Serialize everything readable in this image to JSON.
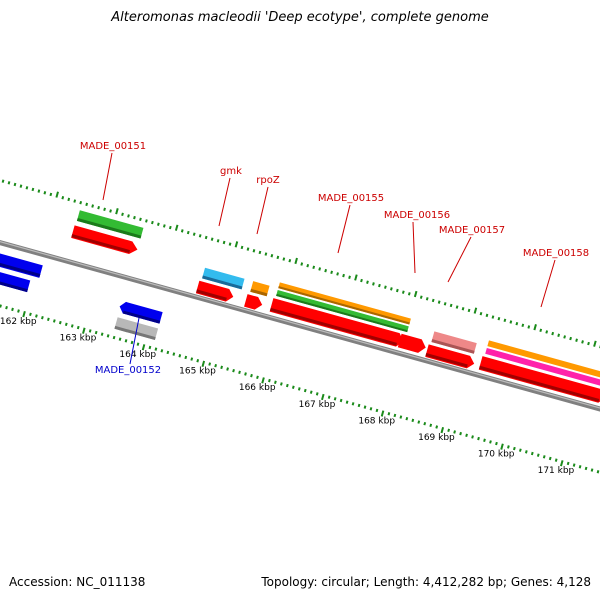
{
  "title": "Alteromonas macleodii 'Deep ecotype', complete genome",
  "footer": {
    "accession": "Accession: NC_011138",
    "summary": "Topology: circular; Length: 4,412,282 bp; Genes: 4,128"
  },
  "colors": {
    "backbone": "#808080",
    "tick": "#1a8a1a",
    "label_forward": "#cc0000",
    "label_reverse": "#0000cc",
    "cds": "#ff0000",
    "green": "#33bb33",
    "cyan": "#33bbee",
    "orange": "#ff9900",
    "pink": "#ee8888",
    "magenta": "#ff22aa",
    "blue": "#0000ee",
    "grey": "#b8b8b8"
  },
  "axis": {
    "kbp_ticks": [
      {
        "label": "162 kbp"
      },
      {
        "label": "163 kbp"
      },
      {
        "label": "164 kbp"
      },
      {
        "label": "165 kbp"
      },
      {
        "label": "166 kbp"
      },
      {
        "label": "167 kbp"
      },
      {
        "label": "168 kbp"
      },
      {
        "label": "169 kbp"
      },
      {
        "label": "170 kbp"
      },
      {
        "label": "171 kbp"
      }
    ]
  },
  "gene_labels": [
    {
      "id": "MADE_00151",
      "text": "MADE_00151",
      "strand": "forward"
    },
    {
      "id": "MADE_00152",
      "text": "MADE_00152",
      "strand": "reverse"
    },
    {
      "id": "gmk",
      "text": "gmk",
      "strand": "forward"
    },
    {
      "id": "rpoZ",
      "text": "rpoZ",
      "strand": "forward"
    },
    {
      "id": "MADE_00155",
      "text": "MADE_00155",
      "strand": "forward"
    },
    {
      "id": "MADE_00156",
      "text": "MADE_00156",
      "strand": "forward"
    },
    {
      "id": "MADE_00157",
      "text": "MADE_00157",
      "strand": "forward"
    },
    {
      "id": "MADE_00158",
      "text": "MADE_00158",
      "strand": "forward"
    }
  ]
}
